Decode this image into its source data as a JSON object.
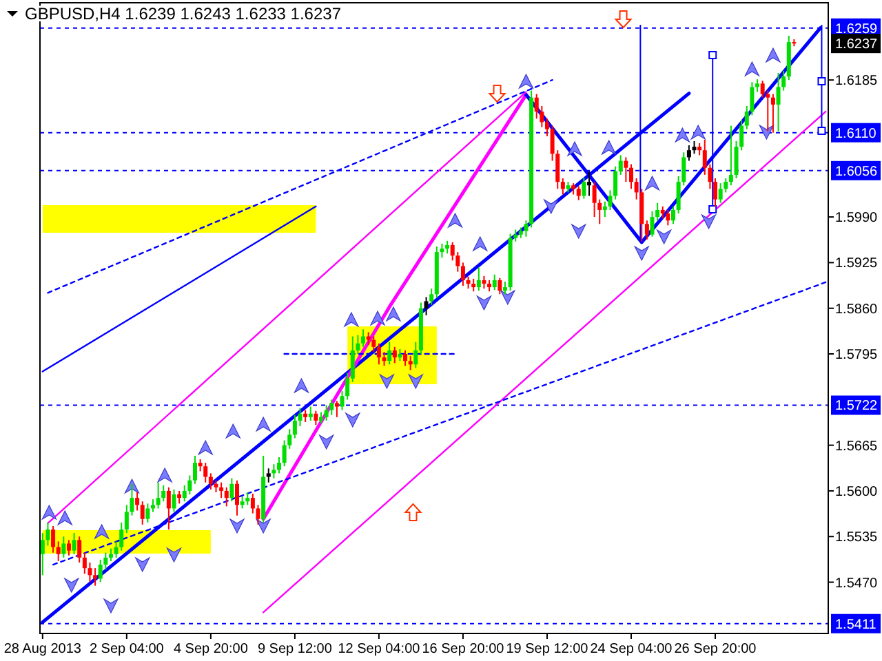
{
  "chart_data": {
    "type": "candlestick",
    "title": "GBPUSD,H4  1.6239 1.6243 1.6233 1.6237",
    "categories": [
      "28 Aug 2013",
      null,
      null,
      null,
      null,
      null,
      null,
      null,
      null,
      null,
      null,
      null,
      null,
      null,
      null,
      null,
      "2 Sep 04:00",
      null,
      null,
      null,
      null,
      null,
      null,
      null,
      null,
      null,
      null,
      null,
      null,
      null,
      null,
      null,
      "4 Sep 20:00",
      null,
      null,
      null,
      null,
      null,
      null,
      null,
      null,
      null,
      null,
      null,
      null,
      null,
      null,
      null,
      "9 Sep 12:00",
      null,
      null,
      null,
      null,
      null,
      null,
      null,
      null,
      null,
      null,
      null,
      null,
      null,
      null,
      null,
      "12 Sep 04:00",
      null,
      null,
      null,
      null,
      null,
      null,
      null,
      null,
      null,
      null,
      null,
      null,
      null,
      null,
      null,
      "16 Sep 20:00",
      null,
      null,
      null,
      null,
      null,
      null,
      null,
      null,
      null,
      null,
      null,
      null,
      null,
      null,
      null,
      "19 Sep 12:00",
      null,
      null,
      null,
      null,
      null,
      null,
      null,
      null,
      null,
      null,
      null,
      null,
      null,
      null,
      null,
      "24 Sep 04:00",
      null,
      null,
      null,
      null,
      null,
      null,
      null,
      null,
      null,
      null,
      null,
      null,
      null,
      null,
      null,
      "26 Sep 20:00",
      null,
      null,
      null,
      null,
      null,
      null,
      null,
      null,
      null,
      null,
      null,
      null,
      null,
      null,
      null,
      null,
      null,
      null,
      null,
      null,
      null
    ],
    "ylim": [
      1.5397,
      1.6295
    ],
    "yticks": [
      1.6185,
      {
        "value": 1.599,
        "label": "1.5990"
      },
      1.5925,
      {
        "value": 1.586,
        "label": "1.5860"
      },
      1.5795,
      1.5665,
      {
        "value": 1.56,
        "label": "1.5600"
      },
      1.5535,
      {
        "value": 1.547,
        "label": "1.5470"
      }
    ],
    "ohlc": [
      [
        1.551,
        1.554,
        1.548,
        1.553
      ],
      [
        1.553,
        1.5555,
        1.5522,
        1.5545
      ],
      [
        1.5545,
        1.555,
        1.5512,
        1.552
      ],
      [
        1.552,
        1.5528,
        1.55,
        1.551
      ],
      [
        1.551,
        1.5535,
        1.5505,
        1.5525
      ],
      [
        1.5525,
        1.553,
        1.5508,
        1.5515
      ],
      [
        1.5515,
        1.554,
        1.551,
        1.553
      ],
      [
        1.553,
        1.5535,
        1.5498,
        1.5505
      ],
      [
        1.5505,
        1.5512,
        1.5482,
        1.549
      ],
      [
        1.549,
        1.5498,
        1.547,
        1.548
      ],
      [
        1.548,
        1.549,
        1.5465,
        1.5475
      ],
      [
        1.5475,
        1.5502,
        1.547,
        1.5495
      ],
      [
        1.5495,
        1.5512,
        1.5488,
        1.5505
      ],
      [
        1.5505,
        1.5518,
        1.55,
        1.551
      ],
      [
        1.551,
        1.5528,
        1.5505,
        1.552
      ],
      [
        1.552,
        1.5555,
        1.5515,
        1.5545
      ],
      [
        1.5545,
        1.558,
        1.554,
        1.557
      ],
      [
        1.557,
        1.561,
        1.5565,
        1.559
      ],
      [
        1.559,
        1.5598,
        1.5572,
        1.558
      ],
      [
        1.558,
        1.5585,
        1.5552,
        1.556
      ],
      [
        1.556,
        1.5582,
        1.5555,
        1.5575
      ],
      [
        1.5575,
        1.5588,
        1.557,
        1.558
      ],
      [
        1.558,
        1.5612,
        1.5575,
        1.559
      ],
      [
        1.559,
        1.5608,
        1.5585,
        1.56
      ],
      [
        1.56,
        1.5605,
        1.5545,
        1.5575
      ],
      [
        1.5575,
        1.5602,
        1.557,
        1.5595
      ],
      [
        1.5595,
        1.56,
        1.5582,
        1.559
      ],
      [
        1.559,
        1.5608,
        1.5585,
        1.56
      ],
      [
        1.56,
        1.5622,
        1.5595,
        1.5615
      ],
      [
        1.5615,
        1.565,
        1.561,
        1.564
      ],
      [
        1.564,
        1.5645,
        1.5628,
        1.5635
      ],
      [
        1.5635,
        1.564,
        1.5612,
        1.562
      ],
      [
        1.562,
        1.5625,
        1.5602,
        1.561
      ],
      [
        1.561,
        1.5615,
        1.5598,
        1.5605
      ],
      [
        1.5605,
        1.5612,
        1.559,
        1.56
      ],
      [
        1.56,
        1.5605,
        1.5578,
        1.559
      ],
      [
        1.559,
        1.5618,
        1.5585,
        1.561
      ],
      [
        1.561,
        1.5615,
        1.5565,
        1.558
      ],
      [
        1.558,
        1.5592,
        1.5575,
        1.5585
      ],
      [
        1.5585,
        1.5598,
        1.558,
        1.559
      ],
      [
        1.559,
        1.5596,
        1.5568,
        1.5575
      ],
      [
        1.5575,
        1.558,
        1.5552,
        1.556
      ],
      [
        1.556,
        1.565,
        1.5555,
        1.562
      ],
      [
        1.562,
        1.5632,
        1.5612,
        1.5625
      ],
      [
        1.5625,
        1.5638,
        1.5618,
        1.563
      ],
      [
        1.563,
        1.5648,
        1.5625,
        1.564
      ],
      [
        1.564,
        1.5672,
        1.5635,
        1.5665
      ],
      [
        1.5665,
        1.5688,
        1.566,
        1.568
      ],
      [
        1.568,
        1.5708,
        1.5675,
        1.57
      ],
      [
        1.57,
        1.5718,
        1.5692,
        1.571
      ],
      [
        1.571,
        1.5715,
        1.5698,
        1.5705
      ],
      [
        1.5705,
        1.572,
        1.57,
        1.571
      ],
      [
        1.571,
        1.5714,
        1.5694,
        1.57
      ],
      [
        1.57,
        1.5712,
        1.5696,
        1.5705
      ],
      [
        1.5705,
        1.5722,
        1.57,
        1.5715
      ],
      [
        1.5715,
        1.573,
        1.5708,
        1.5725
      ],
      [
        1.5725,
        1.5728,
        1.5705,
        1.572
      ],
      [
        1.572,
        1.5742,
        1.5715,
        1.5735
      ],
      [
        1.5735,
        1.5768,
        1.573,
        1.576
      ],
      [
        1.576,
        1.582,
        1.5755,
        1.58
      ],
      [
        1.58,
        1.5822,
        1.5795,
        1.581
      ],
      [
        1.581,
        1.583,
        1.5805,
        1.582
      ],
      [
        1.582,
        1.5826,
        1.5808,
        1.5815
      ],
      [
        1.5815,
        1.582,
        1.5798,
        1.5805
      ],
      [
        1.5805,
        1.581,
        1.578,
        1.579
      ],
      [
        1.579,
        1.5798,
        1.5778,
        1.5785
      ],
      [
        1.5785,
        1.5812,
        1.578,
        1.58
      ],
      [
        1.58,
        1.5805,
        1.5782,
        1.579
      ],
      [
        1.579,
        1.5802,
        1.5785,
        1.5795
      ],
      [
        1.5795,
        1.58,
        1.5778,
        1.5785
      ],
      [
        1.5785,
        1.5792,
        1.5772,
        1.578
      ],
      [
        1.578,
        1.5812,
        1.5775,
        1.58
      ],
      [
        1.58,
        1.5868,
        1.5795,
        1.586
      ],
      [
        1.586,
        1.5876,
        1.585,
        1.587
      ],
      [
        1.587,
        1.5888,
        1.5865,
        1.588
      ],
      [
        1.588,
        1.5948,
        1.5875,
        1.594
      ],
      [
        1.594,
        1.5952,
        1.5932,
        1.5945
      ],
      [
        1.5945,
        1.5956,
        1.5938,
        1.595
      ],
      [
        1.595,
        1.5954,
        1.5928,
        1.5935
      ],
      [
        1.5935,
        1.594,
        1.5912,
        1.592
      ],
      [
        1.592,
        1.5925,
        1.5892,
        1.59
      ],
      [
        1.59,
        1.5905,
        1.5888,
        1.5895
      ],
      [
        1.5895,
        1.5902,
        1.5884,
        1.589
      ],
      [
        1.589,
        1.5918,
        1.5885,
        1.59
      ],
      [
        1.59,
        1.5906,
        1.5888,
        1.5895
      ],
      [
        1.5895,
        1.59,
        1.5884,
        1.589
      ],
      [
        1.589,
        1.5908,
        1.5886,
        1.59
      ],
      [
        1.59,
        1.5903,
        1.588,
        1.5885
      ],
      [
        1.5885,
        1.5898,
        1.588,
        1.589
      ],
      [
        1.589,
        1.5966,
        1.5885,
        1.596
      ],
      [
        1.596,
        1.5972,
        1.5955,
        1.5965
      ],
      [
        1.5965,
        1.5975,
        1.596,
        1.597
      ],
      [
        1.597,
        1.5985,
        1.5962,
        1.598
      ],
      [
        1.598,
        1.617,
        1.5975,
        1.616
      ],
      [
        1.616,
        1.6165,
        1.613,
        1.614
      ],
      [
        1.614,
        1.6148,
        1.6118,
        1.6125
      ],
      [
        1.6125,
        1.613,
        1.6105,
        1.6115
      ],
      [
        1.6115,
        1.612,
        1.607,
        1.608
      ],
      [
        1.608,
        1.6085,
        1.603,
        1.604
      ],
      [
        1.604,
        1.6045,
        1.6022,
        1.603
      ],
      [
        1.603,
        1.604,
        1.6025,
        1.6035
      ],
      [
        1.6035,
        1.6038,
        1.6022,
        1.603
      ],
      [
        1.603,
        1.6034,
        1.6014,
        1.602
      ],
      [
        1.602,
        1.6046,
        1.6016,
        1.604
      ],
      [
        1.604,
        1.6055,
        1.602,
        1.6035
      ],
      [
        1.6035,
        1.604,
        1.599,
        1.601
      ],
      [
        1.601,
        1.6015,
        1.598,
        1.6
      ],
      [
        1.6,
        1.6012,
        1.599,
        1.6005
      ],
      [
        1.6005,
        1.6028,
        1.6,
        1.602
      ],
      [
        1.602,
        1.6062,
        1.6015,
        1.6055
      ],
      [
        1.6055,
        1.6078,
        1.605,
        1.607
      ],
      [
        1.607,
        1.6075,
        1.604,
        1.606
      ],
      [
        1.606,
        1.6065,
        1.603,
        1.604
      ],
      [
        1.604,
        1.6045,
        1.6015,
        1.6025
      ],
      [
        1.6025,
        1.603,
        1.5955,
        1.598
      ],
      [
        1.598,
        1.5985,
        1.5958,
        1.5965
      ],
      [
        1.5965,
        1.5998,
        1.5962,
        1.599
      ],
      [
        1.599,
        1.601,
        1.5985,
        1.6
      ],
      [
        1.6,
        1.6005,
        1.5988,
        1.5995
      ],
      [
        1.5995,
        1.6,
        1.5978,
        1.5985
      ],
      [
        1.5985,
        1.6005,
        1.598,
        1.6
      ],
      [
        1.6,
        1.6048,
        1.5995,
        1.604
      ],
      [
        1.604,
        1.6082,
        1.6035,
        1.6075
      ],
      [
        1.6075,
        1.6092,
        1.607,
        1.6085
      ],
      [
        1.6085,
        1.6098,
        1.608,
        1.609
      ],
      [
        1.609,
        1.6095,
        1.6078,
        1.6085
      ],
      [
        1.6085,
        1.61,
        1.605,
        1.606
      ],
      [
        1.606,
        1.6065,
        1.603,
        1.604
      ],
      [
        1.604,
        1.6045,
        1.6005,
        1.6015
      ],
      [
        1.6015,
        1.6038,
        1.601,
        1.603
      ],
      [
        1.603,
        1.6045,
        1.6025,
        1.604
      ],
      [
        1.604,
        1.612,
        1.6035,
        1.605
      ],
      [
        1.605,
        1.6098,
        1.6045,
        1.609
      ],
      [
        1.609,
        1.6128,
        1.6085,
        1.612
      ],
      [
        1.612,
        1.6148,
        1.6115,
        1.614
      ],
      [
        1.614,
        1.6182,
        1.6135,
        1.6175
      ],
      [
        1.6175,
        1.6186,
        1.6168,
        1.618
      ],
      [
        1.618,
        1.6184,
        1.616,
        1.6165
      ],
      [
        1.6165,
        1.617,
        1.6112,
        1.616
      ],
      [
        1.616,
        1.6165,
        1.611,
        1.615
      ],
      [
        1.615,
        1.6195,
        1.6112,
        1.6175
      ],
      [
        1.6175,
        1.6198,
        1.617,
        1.619
      ],
      [
        1.619,
        1.6248,
        1.6185,
        1.6239
      ],
      [
        1.6239,
        1.6243,
        1.6233,
        1.6237
      ],
      null,
      null,
      null,
      null,
      null,
      null
    ],
    "colors": [
      "#00dd00",
      "#00dd00",
      "#ff0000",
      "#ff0000",
      "#00dd00",
      "#ff0000",
      "#00dd00",
      "#ff0000",
      "#ff0000",
      "#ff0000",
      "#ff0000",
      "#00dd00",
      "#00dd00",
      "#00dd00",
      "#00dd00",
      "#00dd00",
      "#00dd00",
      "#00dd00",
      "#ff0000",
      "#ff0000",
      "#00dd00",
      "#00dd00",
      "#00dd00",
      "#00dd00",
      "#ff0000",
      "#00dd00",
      "#ff0000",
      "#00dd00",
      "#00dd00",
      "#00dd00",
      "#ff0000",
      "#ff0000",
      "#ff0000",
      "#ff0000",
      "#ff0000",
      "#ff0000",
      "#00dd00",
      "#ff0000",
      "#00dd00",
      "#00dd00",
      "#ff0000",
      "#ff0000",
      "#00dd00",
      "#000000",
      "#00dd00",
      "#00dd00",
      "#00dd00",
      "#00dd00",
      "#00dd00",
      "#00dd00",
      "#ff0000",
      "#00dd00",
      "#ff0000",
      "#00dd00",
      "#00dd00",
      "#00dd00",
      "#ff0000",
      "#00dd00",
      "#00dd00",
      "#00dd00",
      "#00dd00",
      "#00dd00",
      "#ff0000",
      "#ff0000",
      "#ff0000",
      "#ff0000",
      "#00dd00",
      "#ff0000",
      "#00dd00",
      "#ff0000",
      "#ff0000",
      "#00dd00",
      "#00dd00",
      "#000000",
      "#00dd00",
      "#00dd00",
      "#00dd00",
      "#00dd00",
      "#ff0000",
      "#ff0000",
      "#ff0000",
      "#ff0000",
      "#ff0000",
      "#00dd00",
      "#ff0000",
      "#ff0000",
      "#00dd00",
      "#ff0000",
      "#00dd00",
      "#00dd00",
      "#00dd00",
      "#00dd00",
      "#00dd00",
      "#00dd00",
      "#ff0000",
      "#ff0000",
      "#ff0000",
      "#ff0000",
      "#ff0000",
      "#ff0000",
      "#00dd00",
      "#ff0000",
      "#ff0000",
      "#00dd00",
      "#000000",
      "#ff0000",
      "#ff0000",
      "#00dd00",
      "#00dd00",
      "#00dd00",
      "#00dd00",
      "#ff0000",
      "#ff0000",
      "#ff0000",
      "#ff0000",
      "#ff0000",
      "#00dd00",
      "#00dd00",
      "#ff0000",
      "#ff0000",
      "#00dd00",
      "#00dd00",
      "#00dd00",
      "#000000",
      "#000000",
      "#ff0000",
      "#ff0000",
      "#ff0000",
      "#ff0000",
      "#00dd00",
      "#00dd00",
      "#00dd00",
      "#00dd00",
      "#00dd00",
      "#00dd00",
      "#00dd00",
      "#00dd00",
      "#ff0000",
      "#ff0000",
      "#ff0000",
      "#00dd00",
      "#00dd00",
      "#00dd00",
      "#ff0000",
      null,
      null,
      null,
      null,
      null,
      null
    ],
    "series": [
      {
        "type": "line",
        "color": "#0000ff",
        "line_style": "solid",
        "values": [
          1.5413,
          null,
          null,
          null,
          null,
          null,
          null,
          null,
          null,
          null,
          null,
          null,
          null,
          null,
          null,
          null,
          null,
          null,
          null,
          null,
          null,
          null,
          null,
          null,
          null,
          null,
          null,
          null,
          null,
          null,
          null,
          null,
          null,
          null,
          null,
          null,
          null,
          null,
          null,
          null,
          null,
          null,
          null,
          null,
          null,
          null,
          null,
          null,
          null,
          null,
          null,
          null,
          null,
          null,
          null,
          null,
          null,
          null,
          null,
          null,
          null,
          null,
          null,
          null,
          null,
          null,
          null,
          null,
          null,
          null,
          null,
          null,
          null,
          null,
          null,
          null,
          null,
          null,
          null,
          null,
          null,
          null,
          null,
          null,
          null,
          null,
          null,
          null,
          null,
          null,
          null,
          null,
          null,
          null,
          null,
          null,
          null,
          null,
          null,
          null,
          null,
          null,
          null,
          null,
          null,
          null,
          null,
          null,
          null,
          null,
          null,
          null,
          null,
          null,
          null,
          null,
          null,
          null,
          null,
          null,
          null,
          null,
          null,
          1.6166,
          null,
          null,
          null,
          null,
          null,
          null,
          null,
          null,
          null,
          null,
          null,
          null,
          null,
          null,
          null,
          null,
          null,
          null,
          null,
          null,
          null,
          null,
          null,
          null,
          null,
          null
        ]
      },
      {
        "type": "line",
        "color": "#ff00ff",
        "line_style": "solid",
        "values": [
          null,
          null,
          null,
          null,
          null,
          null,
          null,
          null,
          null,
          null,
          null,
          null,
          null,
          null,
          null,
          null,
          null,
          null,
          null,
          null,
          null,
          null,
          null,
          null,
          null,
          null,
          null,
          null,
          null,
          null,
          null,
          null,
          null,
          null,
          null,
          null,
          null,
          null,
          null,
          null,
          null,
          null,
          1.556,
          null,
          null,
          null,
          null,
          null,
          null,
          null,
          null,
          null,
          null,
          null,
          null,
          null,
          null,
          null,
          null,
          null,
          null,
          null,
          null,
          null,
          null,
          null,
          1.5862,
          null,
          null,
          null,
          null,
          null,
          null,
          null,
          null,
          null,
          null,
          null,
          null,
          null,
          null,
          null,
          null,
          null,
          null,
          null,
          null,
          null,
          null,
          null,
          null,
          null,
          1.6164,
          null,
          null,
          null,
          null,
          null,
          null,
          null,
          null,
          null,
          null,
          null,
          null,
          null,
          null,
          null,
          null,
          null,
          null,
          null,
          null,
          null,
          null,
          null,
          null,
          null,
          null,
          null,
          null,
          null,
          null,
          null,
          null,
          null,
          null,
          null,
          null,
          null,
          null,
          null,
          null,
          null,
          null,
          null,
          null,
          null,
          null,
          null,
          null,
          null,
          null,
          null,
          null,
          null,
          null,
          null,
          null,
          null
        ]
      },
      {
        "type": "line",
        "color": "#0000ff",
        "line_style": "solid",
        "values": [
          null,
          null,
          null,
          null,
          null,
          null,
          null,
          null,
          null,
          null,
          null,
          null,
          null,
          null,
          null,
          null,
          null,
          null,
          null,
          null,
          null,
          null,
          null,
          null,
          null,
          null,
          null,
          null,
          null,
          null,
          null,
          null,
          null,
          null,
          null,
          null,
          null,
          null,
          null,
          null,
          null,
          null,
          null,
          null,
          null,
          null,
          null,
          null,
          null,
          null,
          null,
          null,
          null,
          null,
          null,
          null,
          null,
          null,
          null,
          null,
          null,
          null,
          null,
          null,
          null,
          null,
          null,
          null,
          null,
          null,
          null,
          null,
          null,
          null,
          null,
          null,
          null,
          null,
          null,
          null,
          null,
          null,
          null,
          null,
          null,
          null,
          null,
          null,
          null,
          null,
          null,
          null,
          1.6164,
          null,
          null,
          null,
          null,
          null,
          null,
          null,
          null,
          null,
          null,
          null,
          null,
          null,
          null,
          null,
          null,
          null,
          null,
          null,
          null,
          null,
          1.5954,
          null,
          null,
          null,
          null,
          null,
          null,
          null,
          null,
          null,
          null,
          null,
          null,
          null,
          null,
          null,
          null,
          null,
          null,
          null,
          null,
          null,
          null,
          null,
          null,
          null,
          null,
          null,
          null,
          null,
          null,
          null,
          null,
          null,
          1.6259,
          null
        ]
      },
      {
        "type": "line",
        "color": "#ff00ff",
        "line_style": "solid",
        "values": [
          null,
          1.5554,
          null,
          null,
          null,
          null,
          null,
          null,
          null,
          null,
          null,
          null,
          null,
          null,
          null,
          null,
          null,
          null,
          null,
          null,
          null,
          null,
          null,
          null,
          null,
          null,
          null,
          null,
          null,
          null,
          null,
          null,
          null,
          null,
          null,
          null,
          null,
          null,
          null,
          null,
          null,
          null,
          null,
          null,
          null,
          null,
          null,
          null,
          null,
          null,
          null,
          null,
          null,
          null,
          null,
          null,
          null,
          null,
          null,
          null,
          null,
          null,
          null,
          null,
          null,
          null,
          null,
          null,
          null,
          null,
          null,
          null,
          null,
          null,
          null,
          null,
          null,
          null,
          null,
          null,
          null,
          null,
          null,
          null,
          null,
          null,
          null,
          null,
          null,
          null,
          null,
          null,
          1.6168,
          null,
          null,
          null,
          null,
          null,
          null,
          null,
          null,
          null,
          null,
          null,
          null,
          null,
          null,
          null,
          null,
          null,
          null,
          null,
          null,
          null,
          null,
          null,
          null,
          null,
          null,
          null,
          null,
          null,
          null,
          null,
          null,
          null,
          null,
          null,
          null,
          null,
          null,
          null,
          null,
          null,
          null,
          null,
          null,
          null,
          null,
          null,
          null,
          null,
          null,
          null,
          null,
          null,
          null,
          null,
          null,
          null
        ]
      },
      {
        "type": "line",
        "color": "#ff00ff",
        "line_style": "solid",
        "values": [
          null,
          null,
          null,
          null,
          null,
          null,
          null,
          null,
          null,
          null,
          null,
          null,
          null,
          null,
          null,
          null,
          null,
          null,
          null,
          null,
          null,
          null,
          null,
          null,
          null,
          null,
          null,
          null,
          null,
          null,
          null,
          null,
          null,
          null,
          null,
          null,
          null,
          null,
          null,
          null,
          null,
          null,
          1.5427,
          null,
          null,
          null,
          null,
          null,
          null,
          null,
          null,
          null,
          null,
          null,
          null,
          null,
          null,
          null,
          null,
          null,
          null,
          null,
          null,
          null,
          null,
          null,
          null,
          null,
          null,
          null,
          null,
          null,
          null,
          null,
          null,
          null,
          null,
          null,
          null,
          null,
          null,
          null,
          null,
          null,
          null,
          null,
          null,
          null,
          null,
          null,
          null,
          null,
          null,
          null,
          null,
          null,
          null,
          null,
          null,
          null,
          null,
          null,
          null,
          null,
          null,
          null,
          null,
          null,
          null,
          null,
          null,
          null,
          null,
          null,
          null,
          null,
          null,
          null,
          null,
          null,
          null,
          null,
          null,
          null,
          null,
          null,
          null,
          null,
          null,
          null,
          null,
          null,
          null,
          null,
          null,
          null,
          null,
          null,
          null,
          null,
          null,
          null,
          null,
          null,
          null,
          null,
          null,
          null,
          null,
          1.614
        ]
      },
      {
        "type": "line",
        "color": "#0000ff",
        "line_style": "solid",
        "values": [
          1.577,
          null,
          null,
          null,
          null,
          null,
          null,
          null,
          null,
          null,
          null,
          null,
          null,
          null,
          null,
          null,
          null,
          null,
          null,
          null,
          null,
          null,
          null,
          null,
          null,
          null,
          null,
          null,
          null,
          null,
          null,
          null,
          null,
          null,
          null,
          null,
          null,
          null,
          null,
          null,
          null,
          null,
          null,
          null,
          null,
          null,
          null,
          null,
          null,
          null,
          null,
          null,
          1.6005,
          null,
          null,
          null,
          null,
          null,
          null,
          null,
          null,
          null,
          null,
          null,
          null,
          null,
          null,
          null,
          null,
          null,
          null,
          null,
          null,
          null,
          null,
          null,
          null,
          null,
          null,
          null,
          null,
          null,
          null,
          null,
          null,
          null,
          null,
          null,
          null,
          null,
          null,
          null,
          null,
          null,
          null,
          null,
          null,
          null,
          null,
          null,
          null,
          null,
          null,
          null,
          null,
          null,
          null,
          null,
          null,
          null,
          null,
          null,
          null,
          null,
          null,
          null,
          null,
          null,
          null,
          null,
          null,
          null,
          null,
          null,
          null,
          null,
          null,
          null,
          null,
          null,
          null,
          null,
          null,
          null,
          null,
          null,
          null,
          null,
          null,
          null,
          null,
          null,
          null,
          null,
          null,
          null,
          null,
          null,
          null,
          null
        ]
      },
      {
        "type": "line",
        "color": "#0000ff",
        "line_style": "dashed",
        "values": [
          null,
          null,
          1.5495,
          null,
          null,
          null,
          null,
          null,
          null,
          null,
          null,
          null,
          null,
          null,
          null,
          null,
          null,
          null,
          null,
          null,
          null,
          null,
          null,
          null,
          null,
          null,
          null,
          null,
          null,
          null,
          null,
          null,
          null,
          null,
          null,
          null,
          null,
          null,
          null,
          null,
          null,
          null,
          null,
          null,
          null,
          null,
          null,
          null,
          null,
          null,
          null,
          null,
          null,
          null,
          null,
          null,
          null,
          null,
          null,
          null,
          null,
          null,
          null,
          null,
          null,
          null,
          null,
          null,
          null,
          null,
          null,
          null,
          null,
          null,
          null,
          null,
          null,
          null,
          null,
          null,
          null,
          null,
          null,
          null,
          null,
          null,
          null,
          null,
          null,
          null,
          null,
          null,
          null,
          null,
          null,
          null,
          null,
          null,
          null,
          null,
          null,
          null,
          null,
          null,
          null,
          null,
          null,
          null,
          null,
          null,
          null,
          null,
          null,
          null,
          null,
          null,
          null,
          null,
          null,
          null,
          null,
          null,
          null,
          null,
          null,
          null,
          null,
          null,
          null,
          null,
          null,
          null,
          null,
          null,
          null,
          null,
          null,
          null,
          null,
          null,
          null,
          null,
          null,
          null,
          null,
          null,
          null,
          null,
          null,
          1.5897
        ]
      },
      {
        "type": "line",
        "color": "#0000ff",
        "line_style": "dashed",
        "values": [
          null,
          1.5882,
          null,
          null,
          null,
          null,
          null,
          null,
          null,
          null,
          null,
          null,
          null,
          null,
          null,
          null,
          null,
          null,
          null,
          null,
          null,
          null,
          null,
          null,
          null,
          null,
          null,
          null,
          null,
          null,
          null,
          null,
          null,
          null,
          null,
          null,
          null,
          null,
          null,
          null,
          null,
          null,
          null,
          null,
          null,
          null,
          null,
          null,
          null,
          null,
          null,
          null,
          null,
          null,
          null,
          null,
          null,
          null,
          null,
          null,
          null,
          null,
          null,
          null,
          null,
          null,
          null,
          null,
          null,
          null,
          null,
          null,
          null,
          null,
          null,
          null,
          null,
          null,
          null,
          null,
          null,
          null,
          null,
          null,
          null,
          null,
          null,
          null,
          null,
          null,
          null,
          null,
          null,
          null,
          null,
          null,
          null,
          1.6185,
          null,
          null,
          null,
          null,
          null,
          null,
          null,
          null,
          null,
          null,
          null,
          null,
          null,
          null,
          null,
          null,
          null,
          null,
          null,
          null,
          null,
          null,
          null,
          null,
          null,
          null,
          null,
          null,
          null,
          null,
          null,
          null,
          null,
          null,
          null,
          null,
          null,
          null,
          null,
          null,
          null,
          null,
          null,
          null,
          null,
          null,
          null,
          null,
          null,
          null,
          null,
          null
        ]
      },
      {
        "type": "line",
        "color": "#0000ff",
        "line_style": "dashed",
        "values": [
          null,
          null,
          null,
          null,
          null,
          null,
          null,
          null,
          null,
          null,
          null,
          null,
          null,
          null,
          null,
          null,
          null,
          null,
          null,
          null,
          null,
          null,
          null,
          null,
          null,
          null,
          null,
          null,
          null,
          null,
          null,
          null,
          null,
          null,
          null,
          null,
          null,
          null,
          null,
          null,
          null,
          null,
          null,
          null,
          null,
          null,
          1.5795,
          null,
          null,
          null,
          null,
          null,
          null,
          null,
          null,
          null,
          null,
          null,
          null,
          null,
          null,
          null,
          null,
          null,
          null,
          null,
          null,
          null,
          null,
          null,
          null,
          null,
          null,
          null,
          null,
          null,
          null,
          null,
          null,
          1.5795,
          null,
          null,
          null,
          null,
          null,
          null,
          null,
          null,
          null,
          null,
          null,
          null,
          null,
          null,
          null,
          null,
          null,
          null,
          null,
          null,
          null,
          null,
          null,
          null,
          null,
          null,
          null,
          null,
          null,
          null,
          null,
          null,
          null,
          null,
          null,
          null,
          null,
          null,
          null,
          null,
          null,
          null,
          null,
          null,
          null,
          null,
          null,
          null,
          null,
          null,
          null,
          null,
          null,
          null,
          null,
          null,
          null,
          null,
          null,
          null,
          null,
          null,
          null,
          null,
          null,
          null,
          null,
          null,
          null,
          null
        ]
      }
    ],
    "ref_lines": [
      {
        "axis": "y",
        "value": 1.6259,
        "label": "1.6259",
        "color": "#0000ff",
        "line_style": "dashed"
      },
      {
        "axis": "y",
        "value": 1.611,
        "label": "1.6110",
        "color": "#0000ff",
        "line_style": "dashed"
      },
      {
        "axis": "y",
        "value": 1.6056,
        "label": "1.6056",
        "color": "#0000ff",
        "line_style": "dashed"
      },
      {
        "axis": "y",
        "value": 1.5722,
        "label": "1.5722",
        "color": "#0000ff",
        "line_style": "dashed"
      },
      {
        "axis": "y",
        "value": 1.5411,
        "label": "1.5411",
        "color": "#0000ff",
        "line_style": "dashed"
      }
    ],
    "annotations": [
      {
        "text": "1.6237",
        "y": 1.6237
      }
    ]
  }
}
